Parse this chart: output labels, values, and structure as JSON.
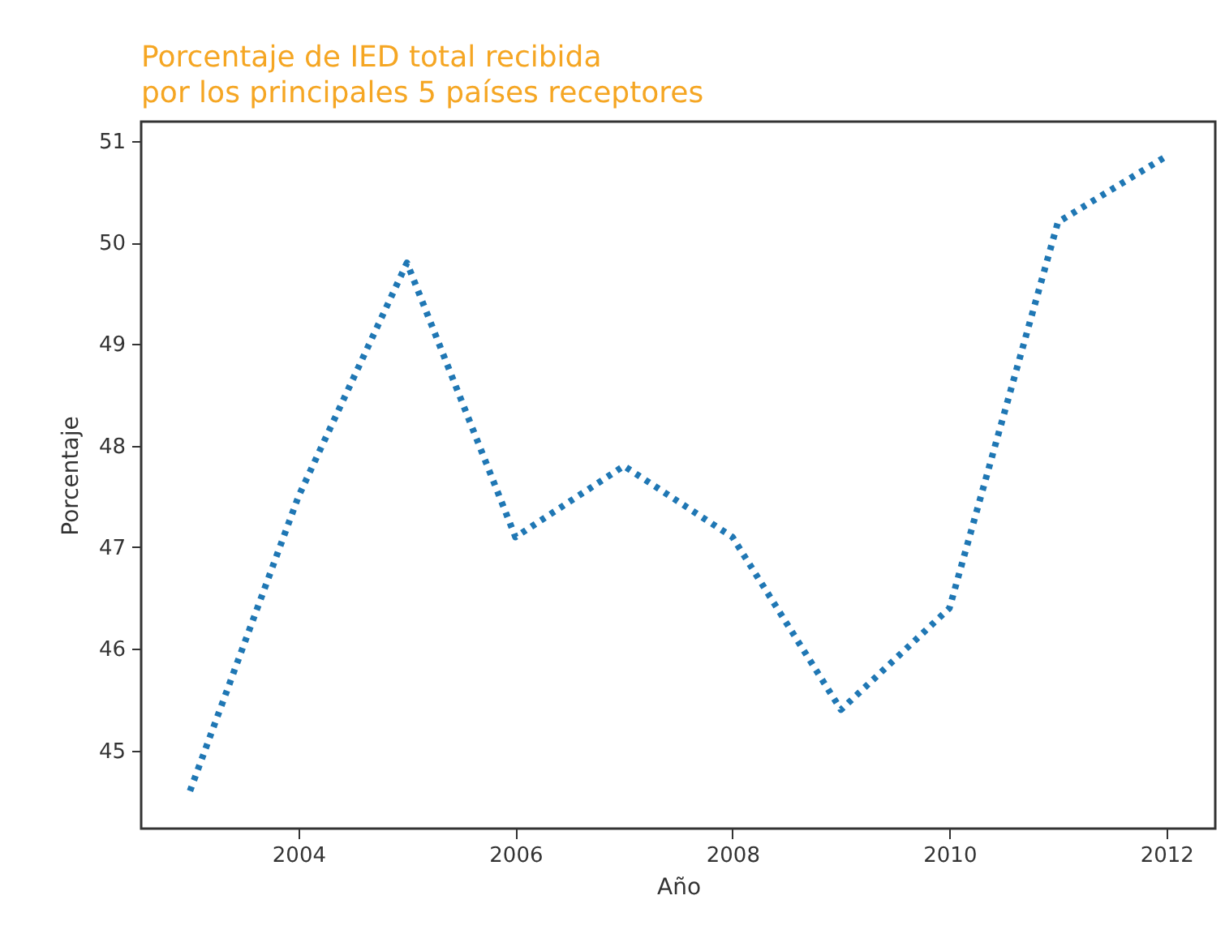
{
  "chart_data": {
    "type": "line",
    "title": "Porcentaje de IED total recibida\n por los principales 5 países receptores",
    "xlabel": "Año",
    "ylabel": "Porcentaje",
    "x": [
      2003,
      2004,
      2005,
      2006,
      2007,
      2008,
      2009,
      2010,
      2011,
      2012
    ],
    "series": [
      {
        "color": "#1f77b4",
        "values": [
          44.6,
          47.5,
          49.8,
          47.1,
          47.8,
          47.1,
          45.4,
          46.4,
          50.2,
          50.85
        ]
      }
    ],
    "xlim": [
      2002.55,
      2012.45
    ],
    "ylim": [
      44.23,
      51.19
    ],
    "xticks": [
      2004,
      2006,
      2008,
      2010,
      2012
    ],
    "yticks": [
      45,
      46,
      47,
      48,
      49,
      50,
      51
    ],
    "grid": false,
    "marker": "none",
    "line_style": "dotted"
  }
}
